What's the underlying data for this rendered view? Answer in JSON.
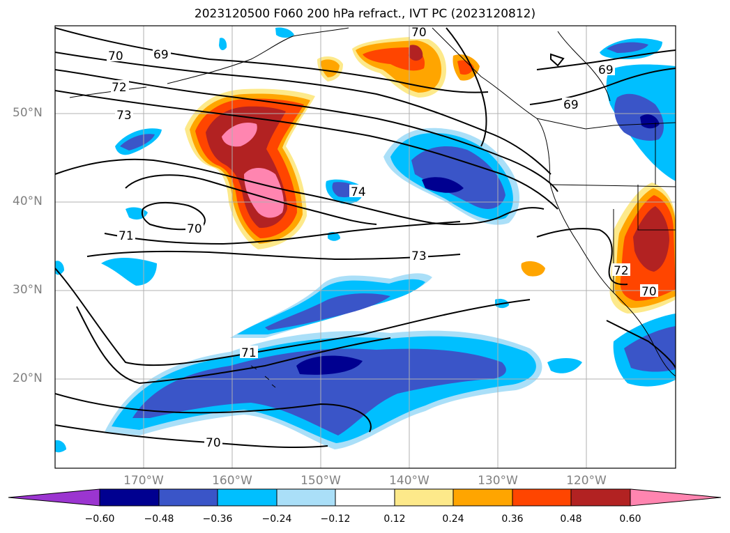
{
  "title": "2023120500 F060 200 hPa refract., IVT PC (2023120812)",
  "map": {
    "lat_labels": [
      "50°N",
      "40°N",
      "30°N",
      "20°N"
    ],
    "lon_labels": [
      "170°W",
      "160°W",
      "150°W",
      "140°W",
      "130°W",
      "120°W"
    ],
    "contour_labels": [
      "69",
      "70",
      "72",
      "73",
      "71",
      "70",
      "74",
      "73",
      "71",
      "70",
      "70",
      "69",
      "69",
      "72",
      "70"
    ],
    "colors": {
      "neg_060": "#000090",
      "neg_048": "#3a55c8",
      "neg_036": "#00bfff",
      "neg_024": "#aadff8",
      "pos_024": "#fde98a",
      "pos_036": "#ffa500",
      "pos_048": "#ff4500",
      "pos_060": "#b22222",
      "pos_max": "#ff85b0",
      "extend_low": "#9b35d0"
    }
  },
  "colorbar": {
    "ticks": [
      "−0.60",
      "−0.48",
      "−0.36",
      "−0.24",
      "−0.12",
      "0.12",
      "0.24",
      "0.36",
      "0.48",
      "0.60"
    ],
    "colors": [
      "#9b35d0",
      "#000090",
      "#3a55c8",
      "#3a55c8",
      "#00bfff",
      "#aadff8",
      "#ffffff",
      "#fde98a",
      "#ffa500",
      "#ff4500",
      "#b22222",
      "#ff85b0"
    ]
  }
}
